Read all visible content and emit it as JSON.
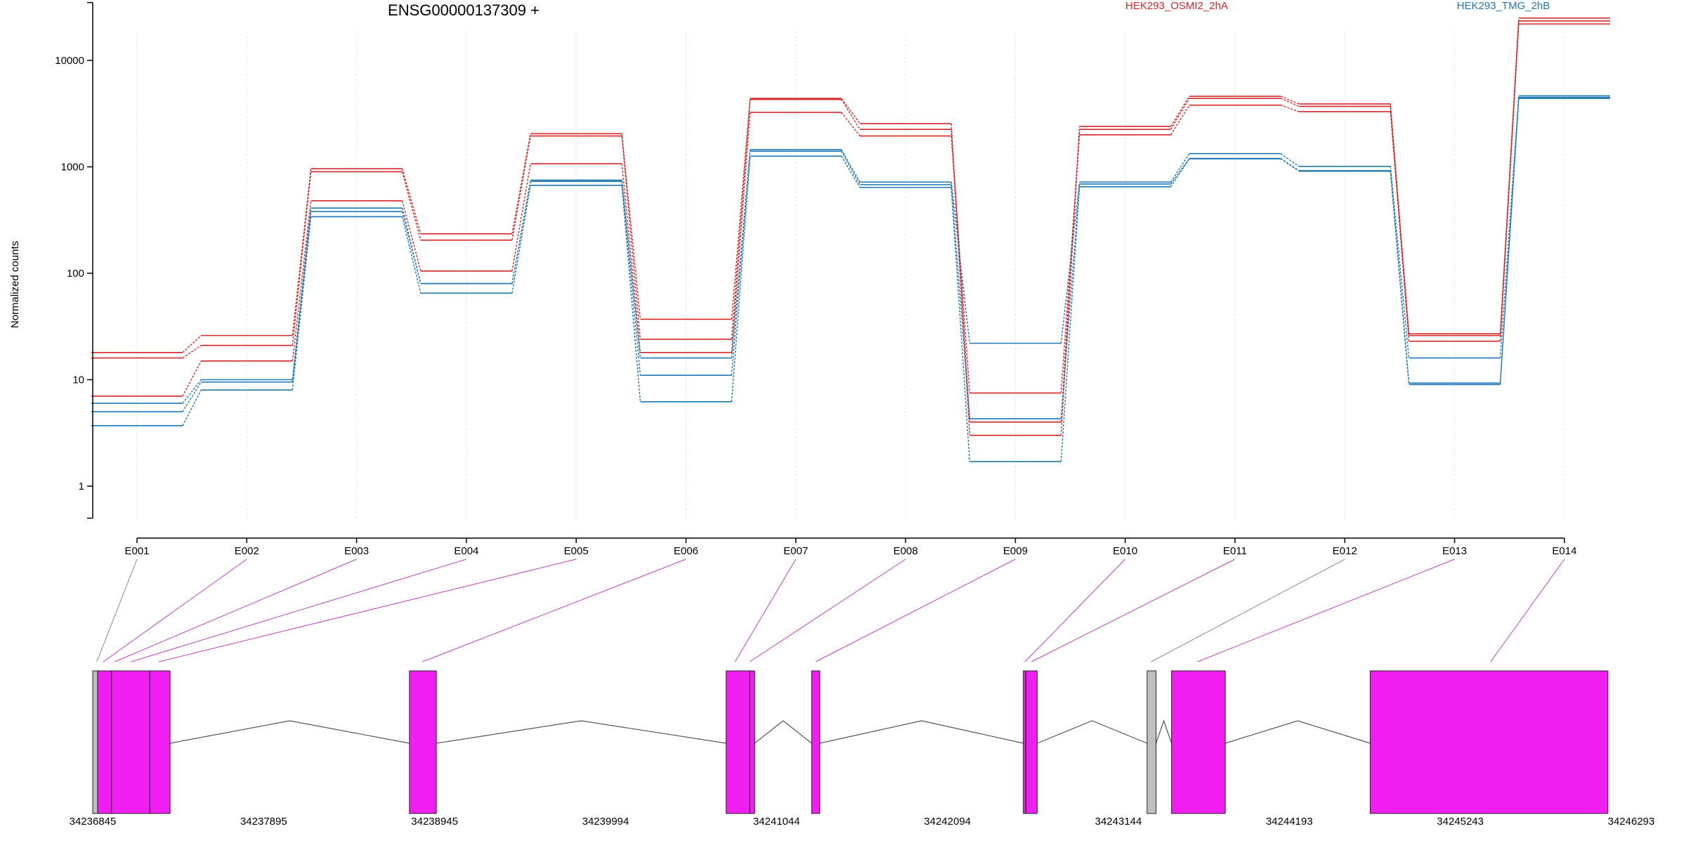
{
  "chart_data": {
    "type": "line",
    "title": "ENSG00000137309 +",
    "ylabel": "Normalized counts",
    "yscale": "log10",
    "ylim": [
      0.5,
      35000
    ],
    "yticks": [
      1,
      10,
      100,
      1000,
      10000
    ],
    "ytick_labels": [
      "1",
      "10",
      "100",
      "1000",
      "10000"
    ],
    "grid": "vertical dashed at exon centers",
    "legend": "top (inline text labels)",
    "categories": [
      "E001",
      "E002",
      "E003",
      "E004",
      "E005",
      "E006",
      "E007",
      "E008",
      "E009",
      "E010",
      "E011",
      "E012",
      "E013",
      "E014"
    ],
    "series": [
      {
        "name": "HEK293_OSMI2_2hA",
        "color": "#d62728",
        "values": [
          18,
          26,
          960,
          235,
          2050,
          37,
          4400,
          2550,
          4.0,
          2400,
          4600,
          3900,
          27,
          25000
        ]
      },
      {
        "name": "",
        "color": "#d62728",
        "values": [
          16,
          21,
          900,
          205,
          1950,
          24,
          4300,
          2250,
          3.0,
          2250,
          4400,
          3700,
          26,
          23500
        ]
      },
      {
        "name": "",
        "color": "#d62728",
        "values": [
          7,
          15,
          480,
          105,
          1070,
          18,
          3250,
          1950,
          7.5,
          2000,
          3800,
          3300,
          23,
          22000
        ]
      },
      {
        "name": "HEK293_TMG_2hB",
        "color": "#1f77b4",
        "values": [
          6,
          10,
          410,
          80,
          750,
          16,
          1450,
          720,
          22,
          720,
          1330,
          1010,
          16,
          4650
        ]
      },
      {
        "name": "",
        "color": "#1f77b4",
        "values": [
          5,
          9.5,
          380,
          80,
          730,
          11,
          1400,
          680,
          4.3,
          690,
          1200,
          920,
          9.3,
          4500
        ]
      },
      {
        "name": "",
        "color": "#1f77b4",
        "values": [
          3.7,
          8,
          340,
          65,
          670,
          6.2,
          1260,
          640,
          1.7,
          650,
          1190,
          910,
          9.0,
          4400
        ]
      }
    ],
    "genome_coordinates": [
      "34236845",
      "34237895",
      "34238945",
      "34239994",
      "34241044",
      "34242094",
      "34243144",
      "34244193",
      "34245243",
      "34246293"
    ],
    "gene_model": {
      "start": 34236845,
      "end": 34246293,
      "colors": {
        "tested": "#f01ef0",
        "untested": "#c0c0c0"
      },
      "blocks": [
        {
          "start": 34236845,
          "end": 34236875,
          "color": "untested"
        },
        {
          "start": 34236875,
          "end": 34237320,
          "color": "tested",
          "dividers": [
            34236960,
            34237195
          ]
        },
        {
          "start": 34238790,
          "end": 34238955,
          "color": "tested"
        },
        {
          "start": 34240735,
          "end": 34240910,
          "color": "tested",
          "dividers": [
            34240880
          ]
        },
        {
          "start": 34241260,
          "end": 34241310,
          "color": "tested"
        },
        {
          "start": 34242560,
          "end": 34242645,
          "color": "tested",
          "dividers": [
            34242575
          ]
        },
        {
          "start": 34243320,
          "end": 34243375,
          "color": "untested"
        },
        {
          "start": 34243470,
          "end": 34243800,
          "color": "tested"
        },
        {
          "start": 34244690,
          "end": 34246150,
          "color": "tested"
        }
      ],
      "exon_links": [
        {
          "exon": "E001",
          "coord": 34236870,
          "color": "#888888"
        },
        {
          "exon": "E002",
          "coord": 34236910,
          "color": "#c040c0"
        },
        {
          "exon": "E003",
          "coord": 34236980,
          "color": "#c040c0"
        },
        {
          "exon": "E004",
          "coord": 34237080,
          "color": "#c040c0"
        },
        {
          "exon": "E005",
          "coord": 34237250,
          "color": "#c040c0"
        },
        {
          "exon": "E006",
          "coord": 34238870,
          "color": "#c040c0"
        },
        {
          "exon": "E007",
          "coord": 34240790,
          "color": "#c040c0"
        },
        {
          "exon": "E008",
          "coord": 34240880,
          "color": "#c040c0"
        },
        {
          "exon": "E009",
          "coord": 34241285,
          "color": "#c040c0"
        },
        {
          "exon": "E010",
          "coord": 34242570,
          "color": "#c040c0"
        },
        {
          "exon": "E011",
          "coord": 34242610,
          "color": "#c040c0"
        },
        {
          "exon": "E012",
          "coord": 34243345,
          "color": "#888888"
        },
        {
          "exon": "E013",
          "coord": 34243630,
          "color": "#c040c0"
        },
        {
          "exon": "E014",
          "coord": 34245430,
          "color": "#c040c0"
        }
      ]
    }
  }
}
